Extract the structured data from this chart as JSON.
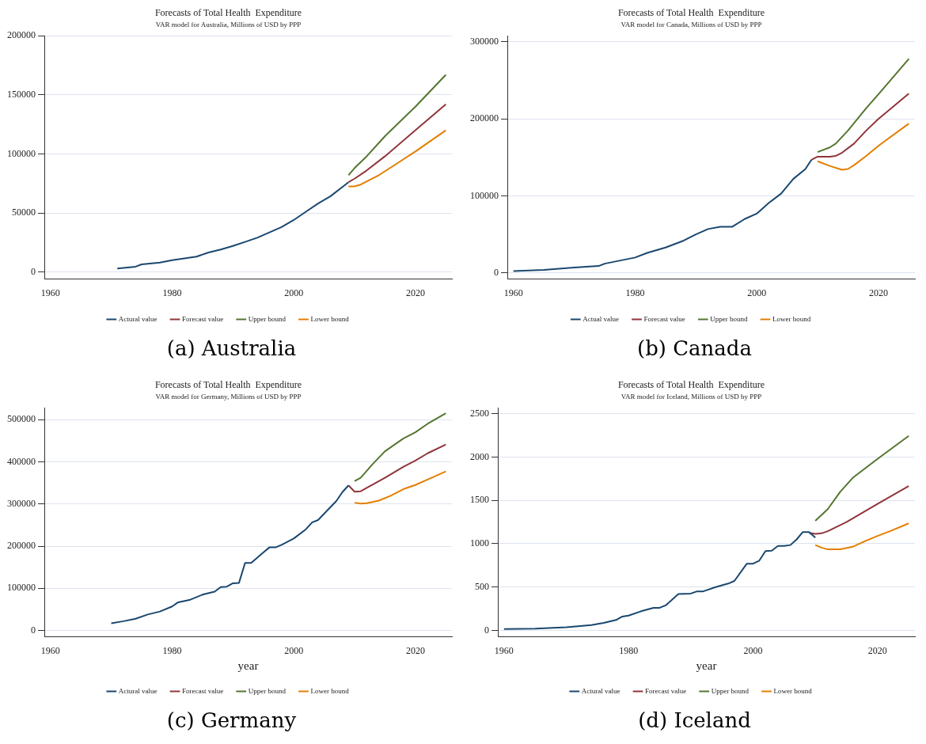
{
  "chart_data": [
    {
      "type": "line",
      "title": "Forecasts of Total Health  Expenditure",
      "subtitle": "VAR model for Australia, Millions of USD by PPP",
      "annotations": [
        "(a) Australia"
      ],
      "xlim": [
        1959,
        2026
      ],
      "xticks": [
        1960,
        1980,
        2000,
        2020
      ],
      "ylim": [
        -6000,
        200000
      ],
      "yticks": [
        0,
        50000,
        100000,
        150000,
        200000
      ],
      "grid": "y",
      "legend": "bottom",
      "marker": "none",
      "line_style": "solid",
      "series": [
        {
          "name": "Actural value",
          "color": "#1a476f",
          "x": [
            1971,
            1974,
            1975,
            1978,
            1980,
            1982,
            1984,
            1986,
            1988,
            1990,
            1992,
            1994,
            1996,
            1998,
            2000,
            2002,
            2004,
            2006,
            2008,
            2009
          ],
          "values": [
            3000,
            4500,
            6500,
            8000,
            10000,
            11500,
            13000,
            16500,
            19000,
            22000,
            25500,
            29000,
            33500,
            38000,
            44000,
            51000,
            58000,
            64000,
            72000,
            76000
          ]
        },
        {
          "name": "Forecast value",
          "color": "#90353b",
          "x": [
            2009,
            2010,
            2012,
            2015,
            2020,
            2025
          ],
          "values": [
            76000,
            79000,
            86000,
            98000,
            120000,
            142000
          ]
        },
        {
          "name": "Upper bound",
          "color": "#55752f",
          "x": [
            2009,
            2010,
            2012,
            2015,
            2020,
            2025
          ],
          "values": [
            82000,
            88000,
            98000,
            115000,
            140000,
            167000
          ]
        },
        {
          "name": "Lower bound",
          "color": "#e37e00",
          "x": [
            2009,
            2010,
            2011,
            2014,
            2020,
            2025
          ],
          "values": [
            72500,
            72500,
            74000,
            82000,
            102000,
            120000
          ]
        }
      ]
    },
    {
      "type": "line",
      "title": "Forecasts of Total Health  Expenditure",
      "subtitle": "VAR model for Canada, Millions of USD by PPP",
      "annotations": [
        "(b) Canada"
      ],
      "xlim": [
        1959,
        2026
      ],
      "xticks": [
        1960,
        1980,
        2000,
        2020
      ],
      "ylim": [
        -8000,
        308000
      ],
      "yticks": [
        0,
        100000,
        200000,
        300000
      ],
      "grid": "y",
      "legend": "bottom",
      "marker": "none",
      "line_style": "solid",
      "series": [
        {
          "name": "Actual value",
          "color": "#1a476f",
          "x": [
            1960,
            1965,
            1970,
            1974,
            1975,
            1980,
            1982,
            1985,
            1988,
            1990,
            1992,
            1994,
            1996,
            1998,
            2000,
            2002,
            2004,
            2006,
            2008,
            2009
          ],
          "values": [
            2500,
            4000,
            7000,
            9000,
            12000,
            20000,
            26000,
            33000,
            42000,
            50000,
            57000,
            60000,
            60000,
            70000,
            77000,
            91000,
            103000,
            122000,
            135000,
            147000
          ]
        },
        {
          "name": "Forecast value",
          "color": "#90353b",
          "x": [
            2009,
            2010,
            2012,
            2013,
            2014,
            2016,
            2018,
            2020,
            2025
          ],
          "values": [
            147000,
            151000,
            151000,
            152000,
            156000,
            168000,
            185000,
            200000,
            233000
          ]
        },
        {
          "name": "Upper bound",
          "color": "#55752f",
          "x": [
            2010,
            2012,
            2013,
            2015,
            2018,
            2020,
            2025
          ],
          "values": [
            157000,
            163000,
            168000,
            185000,
            214000,
            232000,
            278000
          ]
        },
        {
          "name": "Lower bound",
          "color": "#e37e00",
          "x": [
            2010,
            2012,
            2014,
            2015,
            2016,
            2018,
            2020,
            2025
          ],
          "values": [
            145000,
            139000,
            134000,
            135000,
            140000,
            152000,
            165000,
            194000
          ]
        }
      ]
    },
    {
      "type": "line",
      "title": "Forecasts of Total Health  Expenditure",
      "subtitle": "VAR model for Germany, Millions of USD by PPP",
      "xlabel": "year",
      "annotations": [
        "(c) Germany"
      ],
      "xlim": [
        1959,
        2026
      ],
      "xticks": [
        1960,
        1980,
        2000,
        2020
      ],
      "ylim": [
        -15000,
        528000
      ],
      "yticks": [
        0,
        100000,
        200000,
        300000,
        400000,
        500000
      ],
      "grid": "y",
      "legend": "bottom",
      "marker": "none",
      "line_style": "solid",
      "series": [
        {
          "name": "Actural value",
          "color": "#1a476f",
          "x": [
            1970,
            1972,
            1974,
            1976,
            1978,
            1980,
            1981,
            1983,
            1985,
            1987,
            1988,
            1989,
            1990,
            1991,
            1992,
            1993,
            1995,
            1996,
            1997,
            1998,
            2000,
            2002,
            2003,
            2004,
            2006,
            2007,
            2008,
            2009
          ],
          "values": [
            17000,
            22000,
            28000,
            38000,
            45000,
            57000,
            67000,
            73000,
            85000,
            92000,
            103000,
            104000,
            112000,
            113000,
            160000,
            160000,
            185000,
            197000,
            197000,
            203000,
            218000,
            240000,
            256000,
            262000,
            292000,
            307000,
            328000,
            344000
          ]
        },
        {
          "name": "Forecast value",
          "color": "#90353b",
          "x": [
            2009,
            2010,
            2011,
            2013,
            2015,
            2018,
            2020,
            2022,
            2025
          ],
          "values": [
            344000,
            329000,
            330000,
            346000,
            362000,
            388000,
            403000,
            420000,
            441000
          ]
        },
        {
          "name": "Upper bound",
          "color": "#55752f",
          "x": [
            2010,
            2011,
            2013,
            2015,
            2018,
            2020,
            2022,
            2025
          ],
          "values": [
            354000,
            362000,
            395000,
            425000,
            455000,
            470000,
            490000,
            515000
          ]
        },
        {
          "name": "Lower bound",
          "color": "#e37e00",
          "x": [
            2010,
            2011,
            2012,
            2014,
            2016,
            2018,
            2020,
            2022,
            2025
          ],
          "values": [
            303000,
            301000,
            302000,
            308000,
            320000,
            335000,
            345000,
            358000,
            377000
          ]
        }
      ]
    },
    {
      "type": "line",
      "title": "Forecasts of Total Health  Expenditure",
      "subtitle": "VAR model for Iceland, Millions of USD by PPP",
      "xlabel": "year",
      "annotations": [
        "(d) Iceland"
      ],
      "xlim": [
        1959,
        2026
      ],
      "xticks": [
        1960,
        1980,
        2000,
        2020
      ],
      "ylim": [
        -75,
        2570
      ],
      "yticks": [
        0,
        500,
        1000,
        1500,
        2000,
        2500
      ],
      "grid": "y",
      "legend": "bottom",
      "marker": "none",
      "line_style": "solid",
      "series": [
        {
          "name": "Actural value",
          "color": "#1a476f",
          "x": [
            1960,
            1965,
            1970,
            1974,
            1976,
            1978,
            1979,
            1980,
            1982,
            1984,
            1985,
            1986,
            1988,
            1990,
            1991,
            1992,
            1994,
            1996,
            1997,
            1999,
            2000,
            2001,
            2002,
            2003,
            2004,
            2005,
            2006,
            2007,
            2008,
            2009,
            2010
          ],
          "values": [
            15,
            20,
            35,
            60,
            85,
            120,
            160,
            170,
            220,
            260,
            260,
            290,
            420,
            425,
            450,
            450,
            500,
            540,
            570,
            770,
            770,
            805,
            915,
            920,
            975,
            975,
            985,
            1050,
            1135,
            1135,
            1070
          ]
        },
        {
          "name": "Forecast value",
          "color": "#90353b",
          "x": [
            2009,
            2010,
            2011,
            2012,
            2015,
            2020,
            2025
          ],
          "values": [
            1125,
            1115,
            1120,
            1145,
            1250,
            1460,
            1665
          ]
        },
        {
          "name": "Upper bound",
          "color": "#55752f",
          "x": [
            2010,
            2012,
            2014,
            2016,
            2018,
            2020,
            2025
          ],
          "values": [
            1265,
            1400,
            1600,
            1760,
            1870,
            1980,
            2245
          ]
        },
        {
          "name": "Lower bound",
          "color": "#e37e00",
          "x": [
            2010,
            2011,
            2012,
            2014,
            2016,
            2018,
            2020,
            2022,
            2025
          ],
          "values": [
            985,
            955,
            935,
            935,
            965,
            1030,
            1090,
            1145,
            1235
          ]
        }
      ]
    }
  ]
}
